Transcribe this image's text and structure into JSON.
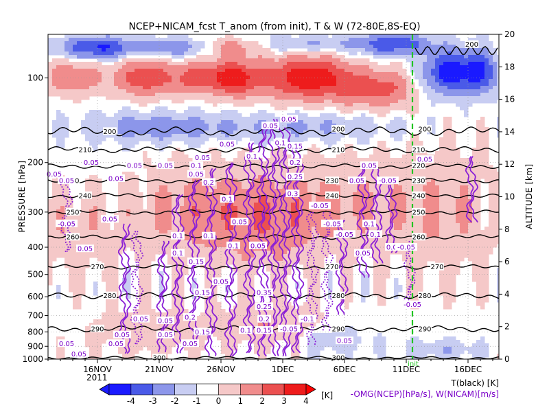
{
  "chart_data": {
    "type": "heatmap",
    "title": "NCEP+NICAM_fcst T_anom (from init), T & W  (72-80E,8S-EQ)",
    "ylabel": "PRESSURE [hPa]",
    "y2label": "ALTITUDE [km]",
    "x_start_year": "2011",
    "init_label": "init",
    "x_ticks": [
      "16NOV",
      "21NOV",
      "26NOV",
      "1DEC",
      "6DEC",
      "11DEC",
      "16DEC"
    ],
    "x_tick_days": [
      16,
      21,
      26,
      31,
      36,
      41,
      46
    ],
    "x_range_days": [
      12,
      48.5
    ],
    "init_day": 41.5,
    "pressure_ticks": [
      1000,
      900,
      800,
      700,
      600,
      500,
      400,
      300,
      200,
      100
    ],
    "pressure_range": [
      1000,
      70
    ],
    "altitude_ticks": [
      0,
      2,
      4,
      6,
      8,
      10,
      12,
      14,
      16,
      18,
      20
    ],
    "colorbar": {
      "unit": "[K]",
      "levels": [
        -4,
        -3,
        -2,
        -1,
        0,
        1,
        2,
        3,
        4
      ],
      "colors": [
        "#1a1aff",
        "#4a5ae8",
        "#8c96ea",
        "#c8cdf2",
        "#ffffff",
        "#f5c8c8",
        "#f08c8c",
        "#eb5050",
        "#ee1c1c"
      ]
    },
    "legend_right": [
      "T(black) [K]",
      "-OMG(NCEP)[hPa/s], W(NICAM)[m/s]"
    ],
    "anomaly_blobs": [
      {
        "day": 20,
        "pres": 100,
        "value": 2.8,
        "sd": 1.8,
        "sp": 0.1
      },
      {
        "day": 24,
        "pres": 100,
        "value": 2.2,
        "sd": 1.2,
        "sp": 0.08
      },
      {
        "day": 27,
        "pres": 100,
        "value": 3.5,
        "sd": 1.4,
        "sp": 0.1
      },
      {
        "day": 33,
        "pres": 100,
        "value": 3.8,
        "sd": 2.6,
        "sp": 0.12
      },
      {
        "day": 37.5,
        "pres": 110,
        "value": 1.8,
        "sd": 1.6,
        "sp": 0.1
      },
      {
        "day": 40,
        "pres": 110,
        "value": 1.5,
        "sd": 1.2,
        "sp": 0.1
      },
      {
        "day": 14,
        "pres": 100,
        "value": 2.0,
        "sd": 1.6,
        "sp": 0.09
      },
      {
        "day": 16,
        "pres": 78,
        "value": -3.2,
        "sd": 2.0,
        "sp": 0.06
      },
      {
        "day": 22,
        "pres": 78,
        "value": -1.8,
        "sd": 2.0,
        "sp": 0.05
      },
      {
        "day": 27,
        "pres": 78,
        "value": 1.5,
        "sd": 1.6,
        "sp": 0.05
      },
      {
        "day": 33,
        "pres": 76,
        "value": -1.2,
        "sd": 3.0,
        "sp": 0.05
      },
      {
        "day": 40,
        "pres": 76,
        "value": -2.8,
        "sd": 2.0,
        "sp": 0.06
      },
      {
        "day": 44.5,
        "pres": 95,
        "value": -3.6,
        "sd": 1.4,
        "sp": 0.12
      },
      {
        "day": 47,
        "pres": 95,
        "value": -2.8,
        "sd": 1.0,
        "sp": 0.12
      },
      {
        "day": 21,
        "pres": 150,
        "value": -1.6,
        "sd": 4.0,
        "sp": 0.08
      },
      {
        "day": 33,
        "pres": 150,
        "value": -1.1,
        "sd": 5.0,
        "sp": 0.08
      },
      {
        "day": 24,
        "pres": 300,
        "value": 1.4,
        "sd": 3.5,
        "sp": 0.25
      },
      {
        "day": 30,
        "pres": 320,
        "value": 1.5,
        "sd": 3.0,
        "sp": 0.25
      },
      {
        "day": 36,
        "pres": 280,
        "value": 1.0,
        "sd": 3.5,
        "sp": 0.25
      },
      {
        "day": 14,
        "pres": 350,
        "value": 0.8,
        "sd": 2.5,
        "sp": 0.25
      },
      {
        "day": 44,
        "pres": 300,
        "value": 1.0,
        "sd": 3.0,
        "sp": 0.35
      },
      {
        "day": 20,
        "pres": 800,
        "value": 0.9,
        "sd": 3.0,
        "sp": 0.12
      },
      {
        "day": 30,
        "pres": 750,
        "value": 1.0,
        "sd": 3.0,
        "sp": 0.12
      },
      {
        "day": 35,
        "pres": 850,
        "value": -0.8,
        "sd": 2.0,
        "sp": 0.08
      },
      {
        "day": 44,
        "pres": 920,
        "value": -0.9,
        "sd": 2.0,
        "sp": 0.05
      }
    ],
    "t_contours": [
      {
        "label": "200",
        "pres": 155,
        "amp": 6,
        "label_day": 17
      },
      {
        "label": "210",
        "pres": 180,
        "amp": 4,
        "label_day": 15
      },
      {
        "label": "220",
        "pres": 206,
        "amp": 3,
        "label_day": 24
      },
      {
        "label": "230",
        "pres": 232,
        "amp": 3,
        "label_day": 14
      },
      {
        "label": "240",
        "pres": 262,
        "amp": 3,
        "label_day": 15
      },
      {
        "label": "250",
        "pres": 300,
        "amp": 3,
        "label_day": 14
      },
      {
        "label": "260",
        "pres": 368,
        "amp": 3,
        "label_day": 14
      },
      {
        "label": "270",
        "pres": 470,
        "amp": 3,
        "label_day": 16
      },
      {
        "label": "280",
        "pres": 595,
        "amp": 4,
        "label_day": 17
      },
      {
        "label": "290",
        "pres": 780,
        "amp": 4,
        "label_day": 16
      },
      {
        "label": "300",
        "pres": 990,
        "amp": 2,
        "label_day": 21
      }
    ],
    "t_label_values": [
      {
        "label": "200",
        "day": 35.5,
        "pres": 152
      },
      {
        "label": "200",
        "day": 42.5,
        "pres": 152
      },
      {
        "label": "200",
        "day": 46.3,
        "pres": 76
      },
      {
        "label": "210",
        "day": 35.5,
        "pres": 180
      },
      {
        "label": "210",
        "day": 42,
        "pres": 180
      },
      {
        "label": "220",
        "day": 42,
        "pres": 205
      },
      {
        "label": "230",
        "day": 35,
        "pres": 232
      },
      {
        "label": "230",
        "day": 42,
        "pres": 232
      },
      {
        "label": "240",
        "day": 35,
        "pres": 262
      },
      {
        "label": "240",
        "day": 42,
        "pres": 262
      },
      {
        "label": "250",
        "day": 42,
        "pres": 300
      },
      {
        "label": "260",
        "day": 42,
        "pres": 368
      },
      {
        "label": "270",
        "day": 35,
        "pres": 470
      },
      {
        "label": "270",
        "day": 43.5,
        "pres": 470
      },
      {
        "label": "280",
        "day": 35.5,
        "pres": 595
      },
      {
        "label": "280",
        "day": 42.5,
        "pres": 595
      },
      {
        "label": "290",
        "day": 35.5,
        "pres": 780
      },
      {
        "label": "290",
        "day": 42.5,
        "pres": 780
      },
      {
        "label": "300",
        "day": 35.5,
        "pres": 990
      }
    ],
    "w_labels": [
      {
        "label": "0.05",
        "day": 30,
        "pres": 148
      },
      {
        "label": "0.05",
        "day": 31.5,
        "pres": 140
      },
      {
        "label": "0.1",
        "day": 30.8,
        "pres": 170
      },
      {
        "label": "0.15",
        "day": 32,
        "pres": 175
      },
      {
        "label": "0.2",
        "day": 32,
        "pres": 200
      },
      {
        "label": "0.25",
        "day": 32,
        "pres": 225
      },
      {
        "label": "0.3",
        "day": 31.8,
        "pres": 258
      },
      {
        "label": "0.05",
        "day": 26.5,
        "pres": 172
      },
      {
        "label": "0.1",
        "day": 28.5,
        "pres": 190
      },
      {
        "label": "0.05",
        "day": 24.5,
        "pres": 192
      },
      {
        "label": "0.05",
        "day": 12.5,
        "pres": 220
      },
      {
        "label": "0.05",
        "day": 15.5,
        "pres": 200
      },
      {
        "label": "0.05",
        "day": 19,
        "pres": 205
      },
      {
        "label": "0.05",
        "day": 21.5,
        "pres": 205
      },
      {
        "label": "0.05",
        "day": 17.5,
        "pres": 228
      },
      {
        "label": "0.1",
        "day": 24,
        "pres": 205
      },
      {
        "label": "0.05",
        "day": 24,
        "pres": 220
      },
      {
        "label": "0.2",
        "day": 25,
        "pres": 235
      },
      {
        "label": "0.1",
        "day": 26.5,
        "pres": 270
      },
      {
        "label": "0.05",
        "day": 13.5,
        "pres": 232
      },
      {
        "label": "-0.05",
        "day": 34,
        "pres": 285
      },
      {
        "label": "0.05",
        "day": 37,
        "pres": 232
      },
      {
        "label": "0.05",
        "day": 38,
        "pres": 205
      },
      {
        "label": "-0.05",
        "day": 39.5,
        "pres": 232
      },
      {
        "label": "-0.05",
        "day": 13.5,
        "pres": 330
      },
      {
        "label": "0.05",
        "day": 17,
        "pres": 318
      },
      {
        "label": "0.05",
        "day": 27.5,
        "pres": 325
      },
      {
        "label": "-0.05",
        "day": 35,
        "pres": 330
      },
      {
        "label": "0.1",
        "day": 38,
        "pres": 330
      },
      {
        "label": "-0.05",
        "day": 36,
        "pres": 360
      },
      {
        "label": "0.1",
        "day": 38.5,
        "pres": 360
      },
      {
        "label": "0.1",
        "day": 22.5,
        "pres": 365
      },
      {
        "label": "0.1",
        "day": 25,
        "pres": 365
      },
      {
        "label": "0.1",
        "day": 27,
        "pres": 395
      },
      {
        "label": "0.05",
        "day": 29,
        "pres": 395
      },
      {
        "label": "0.05",
        "day": 15,
        "pres": 405
      },
      {
        "label": "0.1",
        "day": 22.5,
        "pres": 420
      },
      {
        "label": "0.15",
        "day": 24,
        "pres": 450
      },
      {
        "label": "0.05",
        "day": 37.5,
        "pres": 420
      },
      {
        "label": "0.05",
        "day": 40,
        "pres": 400
      },
      {
        "label": "-0.05",
        "day": 41,
        "pres": 400
      },
      {
        "label": "0.05",
        "day": 26,
        "pres": 530
      },
      {
        "label": "0.15",
        "day": 24.5,
        "pres": 580
      },
      {
        "label": "0.35",
        "day": 29.5,
        "pres": 580
      },
      {
        "label": "0.25",
        "day": 29.5,
        "pres": 650
      },
      {
        "label": "0.2",
        "day": 23.5,
        "pres": 710
      },
      {
        "label": "0.2",
        "day": 29.5,
        "pres": 720
      },
      {
        "label": "0.15",
        "day": 29.5,
        "pres": 790
      },
      {
        "label": "0.05",
        "day": 19.5,
        "pres": 720
      },
      {
        "label": "0.05",
        "day": 21.5,
        "pres": 730
      },
      {
        "label": "-0.1",
        "day": 33,
        "pres": 720
      },
      {
        "label": "-0.05",
        "day": 31.5,
        "pres": 780
      },
      {
        "label": "0.1",
        "day": 28,
        "pres": 790
      },
      {
        "label": "0.15",
        "day": 24.5,
        "pres": 800
      },
      {
        "label": "0.05",
        "day": 18,
        "pres": 820
      },
      {
        "label": "0.05",
        "day": 21.5,
        "pres": 820
      },
      {
        "label": "0.05",
        "day": 13.5,
        "pres": 880
      },
      {
        "label": "0.05",
        "day": 17.5,
        "pres": 880
      },
      {
        "label": "0.05",
        "day": 14.5,
        "pres": 960
      },
      {
        "label": "0.05",
        "day": 23.5,
        "pres": 880
      },
      {
        "label": "0.05",
        "day": 36,
        "pres": 860
      },
      {
        "label": "0.05",
        "day": 42.5,
        "pres": 195
      },
      {
        "label": "-0.05",
        "day": 41.5,
        "pres": 640
      }
    ],
    "w_columns": [
      {
        "day": 13.5,
        "top": 230,
        "bot": 420,
        "dotted": true
      },
      {
        "day": 18.2,
        "top": 330,
        "bot": 960,
        "dotted": false
      },
      {
        "day": 19.2,
        "top": 350,
        "bot": 900,
        "dotted": true
      },
      {
        "day": 21.3,
        "top": 380,
        "bot": 960,
        "dotted": false
      },
      {
        "day": 22.5,
        "top": 260,
        "bot": 960,
        "dotted": false
      },
      {
        "day": 23.8,
        "top": 230,
        "bot": 900,
        "dotted": false
      },
      {
        "day": 25.2,
        "top": 210,
        "bot": 980,
        "dotted": false
      },
      {
        "day": 26.8,
        "top": 200,
        "bot": 980,
        "dotted": false
      },
      {
        "day": 28.3,
        "top": 170,
        "bot": 960,
        "dotted": false
      },
      {
        "day": 29.4,
        "top": 150,
        "bot": 990,
        "dotted": false
      },
      {
        "day": 30.3,
        "top": 140,
        "bot": 990,
        "dotted": false
      },
      {
        "day": 31.2,
        "top": 150,
        "bot": 980,
        "dotted": false
      },
      {
        "day": 32.2,
        "top": 170,
        "bot": 960,
        "dotted": false
      },
      {
        "day": 33.4,
        "top": 300,
        "bot": 900,
        "dotted": true
      },
      {
        "day": 34.6,
        "top": 300,
        "bot": 800,
        "dotted": true
      },
      {
        "day": 35.8,
        "top": 320,
        "bot": 700,
        "dotted": false
      },
      {
        "day": 37.5,
        "top": 210,
        "bot": 520,
        "dotted": false
      },
      {
        "day": 38.6,
        "top": 210,
        "bot": 460,
        "dotted": false
      },
      {
        "day": 39.8,
        "top": 240,
        "bot": 420,
        "dotted": false
      },
      {
        "day": 41.3,
        "top": 380,
        "bot": 620,
        "dotted": true
      },
      {
        "day": 46.3,
        "top": 190,
        "bot": 330,
        "dotted": false
      }
    ]
  }
}
